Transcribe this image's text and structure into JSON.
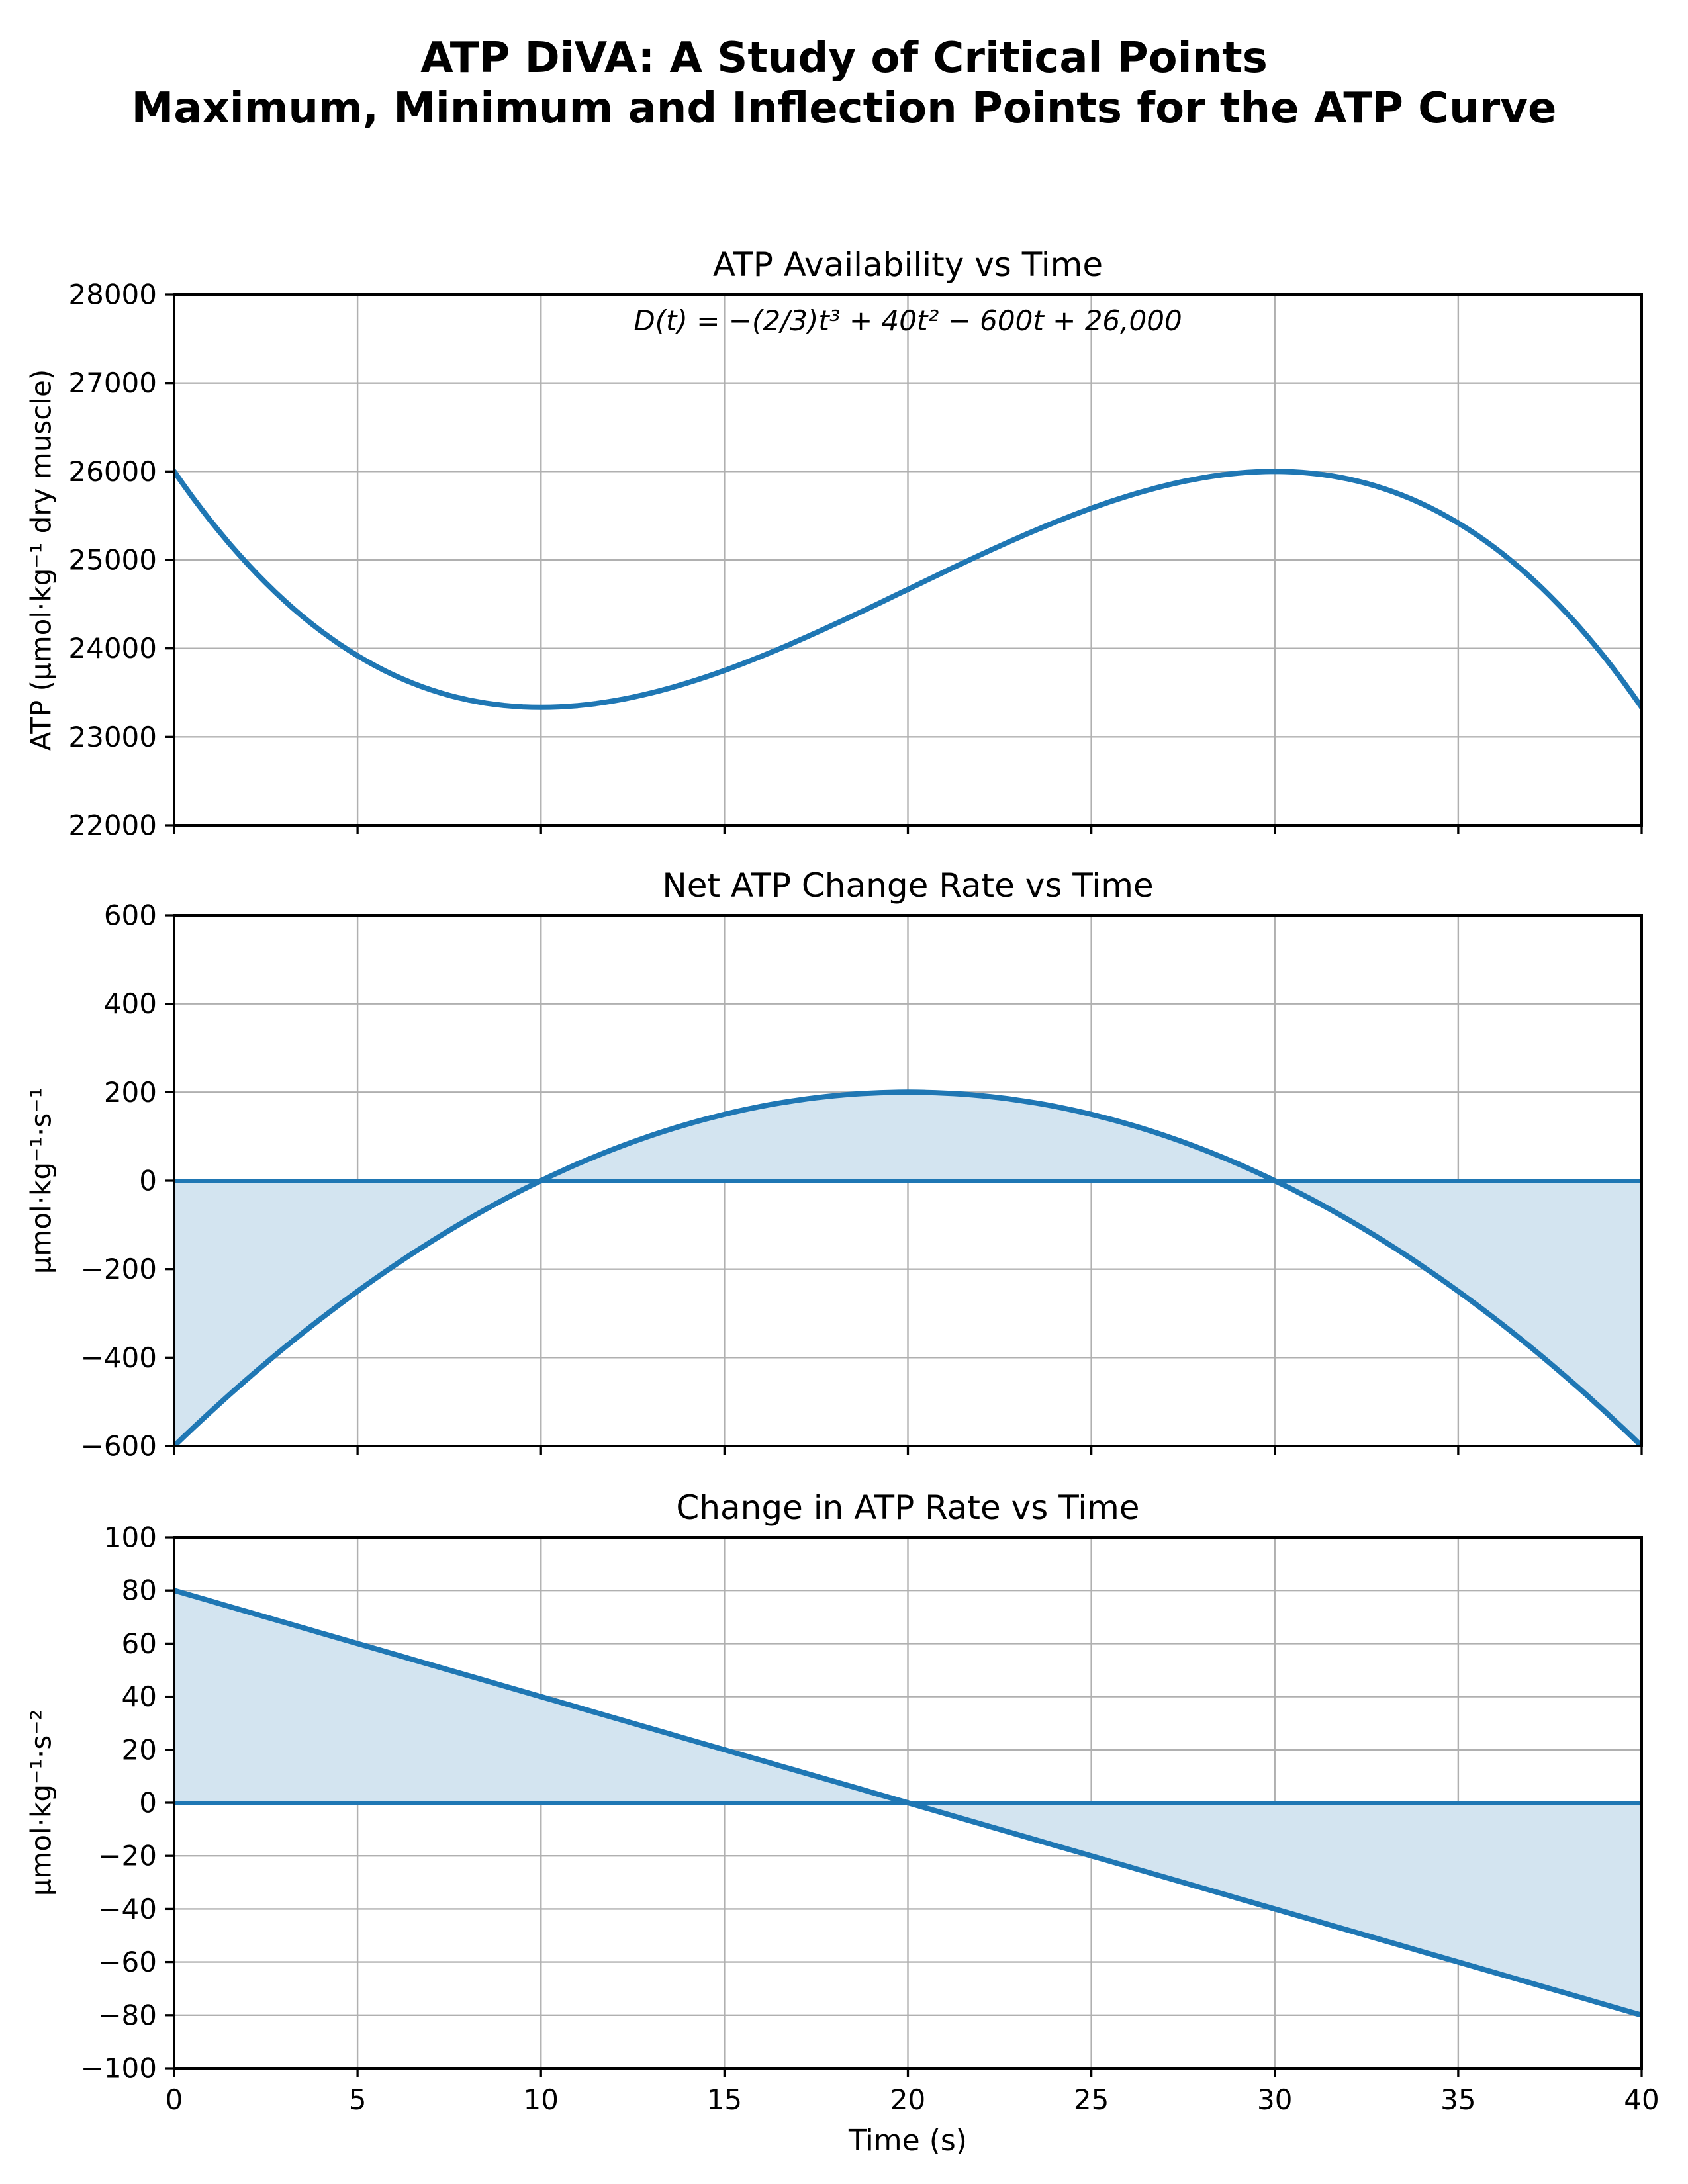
{
  "figure": {
    "suptitle_line1": "ATP DiVA: A Study of Critical Points",
    "suptitle_line2": "Maximum, Minimum and Inflection Points for the ATP Curve"
  },
  "colors": {
    "line": "#1f77b4",
    "fill": "#d3e4f0",
    "grid": "#b0b0b0",
    "spine": "#000000",
    "tick": "#000000",
    "background": "#ffffff"
  },
  "chart_data": [
    {
      "type": "line",
      "title": "ATP Availability vs Time",
      "equation": "D(t) = −(2/3)t³ + 40t² − 600t + 26,000",
      "ylabel": "ATP (μmol·kg⁻¹ dry muscle)",
      "xlabel": "",
      "xlim": [
        0,
        40
      ],
      "ylim": [
        22000,
        28000
      ],
      "xticks": [
        0,
        5,
        10,
        15,
        20,
        25,
        30,
        35,
        40
      ],
      "yticks": [
        22000,
        23000,
        24000,
        25000,
        26000,
        27000,
        28000
      ],
      "show_xtick_labels": false,
      "grid": true,
      "legend": "none",
      "poly_coeffs": [
        -0.6666666667,
        40,
        -600,
        26000
      ],
      "sample_step": 0.25,
      "zero_line": false,
      "fill_to_zero": false,
      "x_at_5s": [
        0,
        5,
        10,
        15,
        20,
        25,
        30,
        35,
        40
      ],
      "y_at_5s": [
        26000,
        23916.67,
        23333.33,
        23750,
        24666.67,
        25583.33,
        26000,
        25416.67,
        23333.33
      ],
      "local_minimum": {
        "t": 10,
        "y": 23333.33
      },
      "local_maximum": {
        "t": 30,
        "y": 26000
      }
    },
    {
      "type": "line",
      "title": "Net ATP Change Rate vs Time",
      "equation": "",
      "ylabel": "μmol·kg⁻¹·s⁻¹",
      "xlabel": "",
      "xlim": [
        0,
        40
      ],
      "ylim": [
        -600,
        600
      ],
      "xticks": [
        0,
        5,
        10,
        15,
        20,
        25,
        30,
        35,
        40
      ],
      "yticks": [
        -600,
        -400,
        -200,
        0,
        200,
        400,
        600
      ],
      "show_xtick_labels": false,
      "grid": true,
      "legend": "none",
      "poly_coeffs": [
        0,
        -2,
        80,
        -600
      ],
      "sample_step": 0.25,
      "zero_line": true,
      "fill_to_zero": true,
      "x_at_5s": [
        0,
        5,
        10,
        15,
        20,
        25,
        30,
        35,
        40
      ],
      "y_at_5s": [
        -600,
        -250,
        0,
        150,
        200,
        150,
        0,
        -250,
        -600
      ],
      "zeros_at": [
        10,
        30
      ],
      "maximum": {
        "t": 20,
        "y": 200
      }
    },
    {
      "type": "line",
      "title": "Change in ATP Rate vs Time",
      "equation": "",
      "ylabel": "μmol·kg⁻¹·s⁻²",
      "xlabel": "Time (s)",
      "xlim": [
        0,
        40
      ],
      "ylim": [
        -100,
        100
      ],
      "xticks": [
        0,
        5,
        10,
        15,
        20,
        25,
        30,
        35,
        40
      ],
      "yticks": [
        -100,
        -80,
        -60,
        -40,
        -20,
        0,
        20,
        40,
        60,
        80,
        100
      ],
      "show_xtick_labels": true,
      "grid": true,
      "legend": "none",
      "poly_coeffs": [
        0,
        0,
        -4,
        80
      ],
      "sample_step": 0.25,
      "zero_line": true,
      "fill_to_zero": true,
      "x_at_5s": [
        0,
        5,
        10,
        15,
        20,
        25,
        30,
        35,
        40
      ],
      "y_at_5s": [
        80,
        60,
        40,
        20,
        0,
        -20,
        -40,
        -60,
        -80
      ],
      "zeros_at": [
        20
      ]
    }
  ]
}
